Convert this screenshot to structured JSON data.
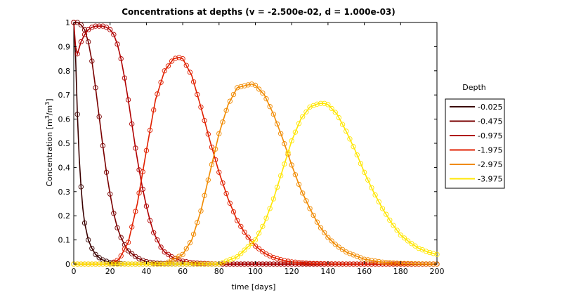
{
  "chart_data": {
    "type": "line",
    "title": "Concentrations at depths (v = -2.500e-02, d = 1.000e-03)",
    "xlabel": "time [days]",
    "ylabel_main": "Concentration [m",
    "ylabel_sup1": "3",
    "ylabel_mid": "/m",
    "ylabel_sup2": "3",
    "ylabel_end": "]",
    "xlim": [
      0,
      200
    ],
    "ylim": [
      0,
      1
    ],
    "xticks": [
      0,
      20,
      40,
      60,
      80,
      100,
      120,
      140,
      160,
      180,
      200
    ],
    "xtick_labels": [
      "0",
      "20",
      "40",
      "60",
      "80",
      "100",
      "120",
      "140",
      "160",
      "180",
      "200"
    ],
    "yticks": [
      0,
      0.1,
      0.2,
      0.3,
      0.4,
      0.5,
      0.6,
      0.7,
      0.8,
      0.9,
      1
    ],
    "ytick_labels": [
      "0",
      "0.1",
      "0.2",
      "0.3",
      "0.4",
      "0.5",
      "0.6",
      "0.7",
      "0.8",
      "0.9",
      "1"
    ],
    "grid": false,
    "legend": {
      "title": "Depth",
      "placement": "right-outside"
    },
    "marker": "circle",
    "marker_step_days": 2,
    "series": [
      {
        "name": "-0.025",
        "color": "#3a0000",
        "x": [
          0,
          1,
          2,
          3,
          4,
          5,
          6,
          8,
          10,
          12,
          15,
          20,
          25,
          30,
          200
        ],
        "y": [
          1.0,
          0.86,
          0.62,
          0.44,
          0.32,
          0.23,
          0.17,
          0.1,
          0.065,
          0.04,
          0.02,
          0.006,
          0.002,
          0.0,
          0.0
        ]
      },
      {
        "name": "-0.475",
        "color": "#7a0000",
        "x": [
          0,
          2,
          4,
          6,
          8,
          10,
          12,
          14,
          16,
          18,
          20,
          22,
          24,
          26,
          28,
          30,
          35,
          40,
          45,
          50,
          60,
          200
        ],
        "y": [
          1.0,
          1.0,
          0.99,
          0.97,
          0.92,
          0.84,
          0.73,
          0.61,
          0.49,
          0.38,
          0.29,
          0.21,
          0.15,
          0.11,
          0.08,
          0.055,
          0.025,
          0.01,
          0.004,
          0.002,
          0.0,
          0.0
        ]
      },
      {
        "name": "-0.975",
        "color": "#b00000",
        "x": [
          0,
          1,
          2,
          4,
          6,
          8,
          10,
          12,
          14,
          16,
          18,
          20,
          22,
          24,
          26,
          28,
          30,
          32,
          34,
          36,
          38,
          40,
          42,
          44,
          46,
          48,
          50,
          55,
          60,
          65,
          70,
          80,
          200
        ],
        "y": [
          1.0,
          0.9,
          0.87,
          0.92,
          0.95,
          0.97,
          0.98,
          0.985,
          0.985,
          0.985,
          0.98,
          0.97,
          0.95,
          0.91,
          0.85,
          0.77,
          0.68,
          0.58,
          0.48,
          0.39,
          0.31,
          0.24,
          0.18,
          0.13,
          0.1,
          0.07,
          0.05,
          0.025,
          0.012,
          0.006,
          0.003,
          0.0,
          0.0
        ]
      },
      {
        "name": "-1.975",
        "color": "#e02000",
        "x": [
          0,
          20,
          25,
          30,
          35,
          40,
          45,
          50,
          55,
          58,
          60,
          65,
          70,
          75,
          80,
          85,
          90,
          95,
          100,
          105,
          110,
          115,
          120,
          130,
          140,
          150,
          160,
          200
        ],
        "y": [
          0.0,
          0.0,
          0.02,
          0.09,
          0.25,
          0.47,
          0.68,
          0.8,
          0.85,
          0.855,
          0.85,
          0.78,
          0.65,
          0.51,
          0.38,
          0.27,
          0.18,
          0.12,
          0.075,
          0.045,
          0.027,
          0.016,
          0.009,
          0.003,
          0.001,
          0.0,
          0.0,
          0.0
        ]
      },
      {
        "name": "-2.975",
        "color": "#f08a00",
        "x": [
          0,
          50,
          60,
          65,
          70,
          75,
          80,
          85,
          90,
          95,
          98,
          100,
          105,
          110,
          115,
          120,
          125,
          130,
          135,
          140,
          145,
          150,
          160,
          170,
          180,
          190,
          200
        ],
        "y": [
          0.0,
          0.0,
          0.04,
          0.1,
          0.22,
          0.38,
          0.54,
          0.66,
          0.73,
          0.74,
          0.745,
          0.74,
          0.7,
          0.62,
          0.52,
          0.41,
          0.31,
          0.23,
          0.16,
          0.11,
          0.075,
          0.05,
          0.02,
          0.008,
          0.003,
          0.001,
          0.0
        ]
      },
      {
        "name": "-3.975",
        "color": "#ffe600",
        "x": [
          0,
          80,
          90,
          100,
          105,
          110,
          115,
          120,
          125,
          130,
          135,
          138,
          140,
          145,
          150,
          155,
          160,
          165,
          170,
          175,
          180,
          185,
          190,
          195,
          200
        ],
        "y": [
          0.0,
          0.0,
          0.03,
          0.1,
          0.17,
          0.27,
          0.39,
          0.51,
          0.6,
          0.65,
          0.665,
          0.665,
          0.66,
          0.62,
          0.55,
          0.47,
          0.38,
          0.3,
          0.23,
          0.17,
          0.12,
          0.09,
          0.065,
          0.05,
          0.04
        ]
      }
    ]
  }
}
